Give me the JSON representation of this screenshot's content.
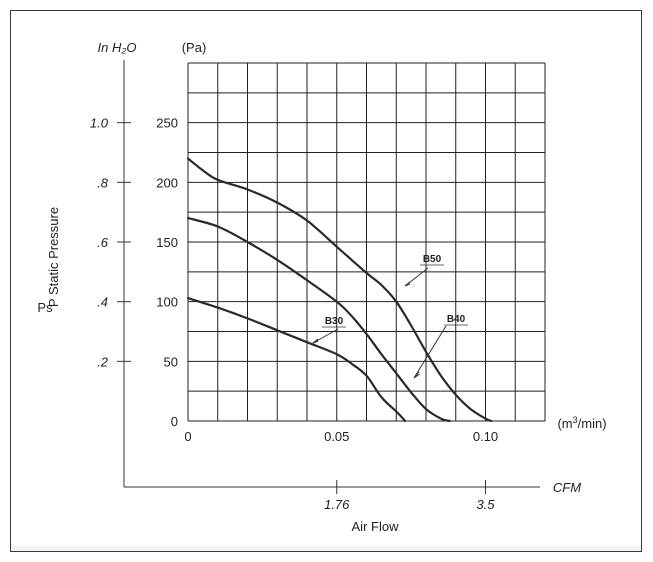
{
  "chart_data": {
    "type": "line",
    "left_axis": {
      "unit_label": "In H₂O",
      "ticks": [
        ".2",
        ".4",
        ".6",
        ".8",
        "1.0"
      ],
      "tick_values_pa": [
        50,
        100,
        150,
        200,
        250
      ]
    },
    "y_axis": {
      "unit_label": "(Pa)",
      "ticks": [
        "0",
        "50",
        "100",
        "150",
        "200",
        "250"
      ],
      "ylim": [
        0,
        300
      ],
      "ylabel_line1": "P  Static Pressure",
      "ylabel_line2": "Ps"
    },
    "x_axis": {
      "ticks": [
        "0",
        "0.05",
        "0.10"
      ],
      "xlim": [
        0,
        0.12
      ],
      "unit_label": "(m³/min)"
    },
    "bottom_axis": {
      "unit_label": "CFM",
      "ticks": [
        "1.76",
        "3.5"
      ],
      "tick_values_m3min": [
        0.05,
        0.1
      ],
      "xlabel": "Air Flow"
    },
    "grid": true,
    "series": [
      {
        "name": "B50",
        "x": [
          0,
          0.005,
          0.01,
          0.02,
          0.03,
          0.04,
          0.05,
          0.055,
          0.06,
          0.065,
          0.07,
          0.075,
          0.08,
          0.085,
          0.09,
          0.095,
          0.1,
          0.102
        ],
        "y": [
          220,
          210,
          202,
          194,
          183,
          168,
          146,
          135,
          124,
          114,
          100,
          80,
          58,
          38,
          22,
          10,
          2,
          0
        ]
      },
      {
        "name": "B40",
        "x": [
          0,
          0.01,
          0.02,
          0.03,
          0.04,
          0.05,
          0.055,
          0.06,
          0.065,
          0.07,
          0.075,
          0.08,
          0.085,
          0.088
        ],
        "y": [
          170,
          163,
          150,
          135,
          118,
          100,
          88,
          73,
          56,
          40,
          24,
          10,
          2,
          0
        ]
      },
      {
        "name": "B30",
        "x": [
          0,
          0.01,
          0.02,
          0.03,
          0.04,
          0.05,
          0.055,
          0.06,
          0.065,
          0.07,
          0.073
        ],
        "y": [
          103,
          95,
          86,
          76,
          66,
          56,
          48,
          38,
          20,
          8,
          0
        ]
      }
    ]
  }
}
